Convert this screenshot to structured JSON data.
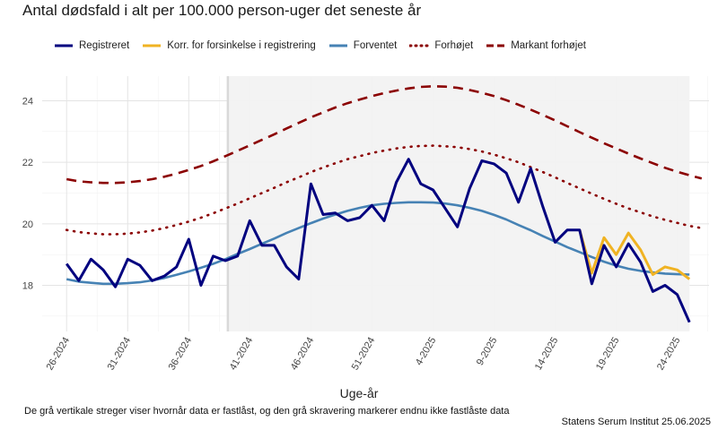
{
  "chart_data": {
    "type": "line",
    "title": "Antal dødsfald i alt per 100.000 person-uger det seneste år",
    "xlabel": "Uge-år",
    "ylabel": "",
    "ylim": [
      16.5,
      24.8
    ],
    "yticks": [
      18,
      20,
      22,
      24
    ],
    "xticks": [
      "26-2024",
      "31-2024",
      "36-2024",
      "41-2024",
      "46-2024",
      "51-2024",
      "4-2025",
      "9-2025",
      "14-2025",
      "19-2025",
      "24-2025"
    ],
    "xtick_index": [
      0,
      5,
      10,
      15,
      20,
      25,
      30,
      35,
      40,
      45,
      50
    ],
    "x_index_range": [
      -2,
      52.6
    ],
    "locked_until_index": 13.2,
    "series": [
      {
        "name": "Registreret",
        "color": "#00007f",
        "style": "solid",
        "values": [
          18.7,
          18.15,
          18.85,
          18.5,
          17.95,
          18.85,
          18.65,
          18.15,
          18.3,
          18.6,
          19.5,
          18.0,
          18.95,
          18.8,
          18.95,
          20.1,
          19.3,
          19.3,
          18.6,
          18.2,
          21.3,
          20.3,
          20.35,
          20.1,
          20.2,
          20.6,
          20.1,
          21.35,
          22.1,
          21.3,
          21.1,
          20.5,
          19.9,
          21.15,
          22.05,
          21.95,
          21.65,
          20.7,
          21.8,
          20.55,
          19.4,
          19.8,
          19.8,
          18.05,
          19.3,
          18.6,
          19.35,
          18.75,
          17.8,
          18.0,
          17.7,
          16.8
        ]
      },
      {
        "name": "Korr. for forsinkelse i registrering",
        "color": "#f0b323",
        "style": "solid",
        "start_index": 42,
        "values": [
          19.8,
          18.4,
          19.55,
          19.0,
          19.7,
          19.15,
          18.35,
          18.6,
          18.5,
          18.2
        ]
      },
      {
        "name": "Forventet",
        "color": "#4682b4",
        "style": "solid",
        "values": [
          18.2,
          18.12,
          18.08,
          18.05,
          18.05,
          18.07,
          18.1,
          18.16,
          18.24,
          18.34,
          18.45,
          18.57,
          18.7,
          18.85,
          19.02,
          19.18,
          19.35,
          19.52,
          19.7,
          19.86,
          20.02,
          20.17,
          20.3,
          20.42,
          20.52,
          20.6,
          20.65,
          20.68,
          20.7,
          20.7,
          20.69,
          20.66,
          20.6,
          20.52,
          20.42,
          20.29,
          20.14,
          19.96,
          19.79,
          19.6,
          19.42,
          19.24,
          19.08,
          18.92,
          18.77,
          18.64,
          18.54,
          18.47,
          18.42,
          18.38,
          18.36,
          18.35
        ]
      },
      {
        "name": "Forhøjet",
        "color": "#8b0000",
        "style": "dotted",
        "values": [
          19.8,
          19.73,
          19.69,
          19.66,
          19.66,
          19.68,
          19.72,
          19.78,
          19.86,
          19.96,
          20.07,
          20.2,
          20.34,
          20.5,
          20.66,
          20.83,
          21.0,
          21.17,
          21.35,
          21.51,
          21.68,
          21.83,
          21.97,
          22.1,
          22.2,
          22.3,
          22.38,
          22.45,
          22.5,
          22.53,
          22.54,
          22.52,
          22.49,
          22.43,
          22.35,
          22.25,
          22.13,
          22.0,
          21.84,
          21.68,
          21.51,
          21.33,
          21.15,
          20.98,
          20.81,
          20.65,
          20.5,
          20.37,
          20.24,
          20.13,
          20.03,
          19.93,
          19.86
        ]
      },
      {
        "name": "Markant forhøjet",
        "color": "#8b0000",
        "style": "dashed",
        "values": [
          21.45,
          21.38,
          21.35,
          21.33,
          21.33,
          21.35,
          21.39,
          21.45,
          21.53,
          21.63,
          21.75,
          21.88,
          22.03,
          22.2,
          22.37,
          22.55,
          22.73,
          22.91,
          23.1,
          23.28,
          23.46,
          23.62,
          23.78,
          23.92,
          24.04,
          24.15,
          24.25,
          24.33,
          24.4,
          24.45,
          24.47,
          24.46,
          24.42,
          24.35,
          24.26,
          24.15,
          24.02,
          23.87,
          23.71,
          23.54,
          23.36,
          23.17,
          22.98,
          22.8,
          22.62,
          22.45,
          22.28,
          22.12,
          21.97,
          21.82,
          21.69,
          21.58,
          21.47
        ]
      }
    ]
  },
  "footnote": "De grå vertikale streger viser hvornår data er fastlåst, og den grå skravering markerer endnu ikke fastlåste data",
  "credit": "Statens Serum Institut  25.06.2025"
}
